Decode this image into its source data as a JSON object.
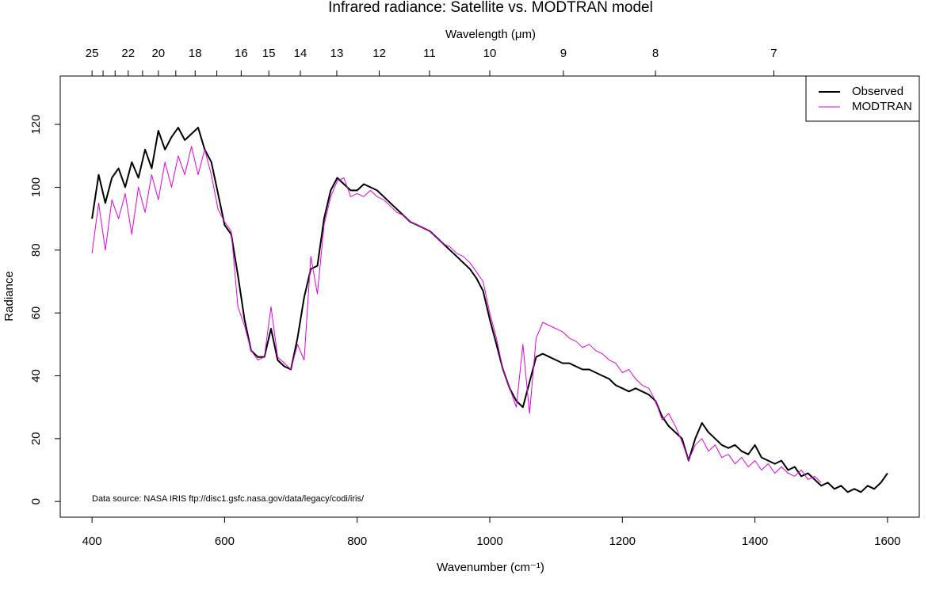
{
  "chart_data": {
    "type": "line",
    "title": "Infrared radiance: Satellite vs. MODTRAN model",
    "x_label": "Wavenumber (cm⁻¹)",
    "y_label": "Radiance",
    "x2_label": "Wavelength (μm)",
    "annotation": "Data source: NASA IRIS ftp://disc1.gsfc.nasa.gov/data/legacy/codi/iris/",
    "legend": "top-right",
    "xlim": [
      352,
      1648
    ],
    "ylim": [
      -5,
      135.4
    ],
    "xticks": [
      400,
      600,
      800,
      1000,
      1200,
      1400,
      1600
    ],
    "yticks": [
      0,
      20,
      40,
      60,
      80,
      100,
      120
    ],
    "x2ticks": [
      25,
      22,
      20,
      18,
      16,
      15,
      14,
      13,
      12,
      11,
      10,
      9,
      8,
      7
    ],
    "x2minor": [
      24,
      23,
      21,
      19,
      17
    ],
    "x": [
      400,
      410,
      420,
      430,
      440,
      450,
      460,
      470,
      480,
      490,
      500,
      510,
      520,
      530,
      540,
      550,
      560,
      570,
      580,
      590,
      600,
      610,
      620,
      630,
      640,
      650,
      660,
      670,
      680,
      690,
      700,
      710,
      720,
      730,
      740,
      750,
      760,
      770,
      780,
      790,
      800,
      810,
      820,
      830,
      840,
      850,
      860,
      870,
      880,
      890,
      900,
      910,
      920,
      930,
      940,
      950,
      960,
      970,
      980,
      990,
      1000,
      1010,
      1020,
      1030,
      1040,
      1050,
      1060,
      1070,
      1080,
      1090,
      1100,
      1110,
      1120,
      1130,
      1140,
      1150,
      1160,
      1170,
      1180,
      1190,
      1200,
      1210,
      1220,
      1230,
      1240,
      1250,
      1260,
      1270,
      1280,
      1290,
      1300,
      1310,
      1320,
      1330,
      1340,
      1350,
      1360,
      1370,
      1380,
      1390,
      1400,
      1410,
      1420,
      1430,
      1440,
      1450,
      1460,
      1470,
      1480,
      1490,
      1500,
      1510,
      1520,
      1530,
      1540,
      1550,
      1560,
      1570,
      1580,
      1590,
      1600
    ],
    "series": [
      {
        "name": "Observed",
        "color": "#000000",
        "width": 2,
        "values": [
          90,
          104,
          95,
          103,
          106,
          100,
          108,
          103,
          112,
          106,
          118,
          112,
          116,
          119,
          115,
          117,
          119,
          112,
          108,
          98,
          88,
          85,
          72,
          58,
          48,
          46,
          46,
          55,
          45,
          43,
          42,
          52,
          65,
          74,
          75,
          90,
          99,
          103,
          101,
          99,
          99,
          101,
          100,
          99,
          97,
          95,
          93,
          91,
          89,
          88,
          87,
          86,
          84,
          82,
          80,
          78,
          76,
          74,
          71,
          67,
          58,
          50,
          42,
          36,
          32,
          30,
          38,
          46,
          47,
          46,
          45,
          44,
          44,
          43,
          42,
          42,
          41,
          40,
          39,
          37,
          36,
          35,
          36,
          35,
          34,
          32,
          27,
          24,
          22,
          20,
          13,
          20,
          25,
          22,
          20,
          18,
          17,
          18,
          16,
          15,
          18,
          14,
          13,
          12,
          13,
          10,
          11,
          8,
          9,
          7,
          5,
          6,
          4,
          5,
          3,
          4,
          3,
          5,
          4,
          6,
          9
        ]
      },
      {
        "name": "MODTRAN",
        "color": "#e000e0",
        "width": 1,
        "values": [
          79,
          95,
          80,
          96,
          90,
          98,
          85,
          100,
          92,
          104,
          96,
          108,
          100,
          110,
          104,
          113,
          104,
          112,
          104,
          93,
          89,
          86,
          62,
          56,
          48,
          45,
          46,
          62,
          46,
          44,
          42,
          50,
          45,
          78,
          66,
          88,
          97,
          102,
          103,
          97,
          98,
          97,
          99,
          97,
          96,
          94,
          92,
          91,
          89,
          88,
          87,
          86,
          84,
          82,
          81,
          79,
          78,
          76,
          73,
          70,
          60,
          52,
          42,
          36,
          30,
          50,
          28,
          52,
          57,
          56,
          55,
          54,
          52,
          51,
          49,
          50,
          48,
          47,
          45,
          44,
          41,
          42,
          39,
          37,
          36,
          32,
          26,
          28,
          24,
          19,
          13,
          18,
          20,
          16,
          18,
          14,
          15,
          12,
          14,
          11,
          13,
          10,
          12,
          9,
          11,
          9,
          8,
          10,
          7,
          8,
          6,
          null,
          null,
          null,
          null,
          null,
          null,
          null,
          null,
          null,
          null
        ]
      }
    ]
  }
}
